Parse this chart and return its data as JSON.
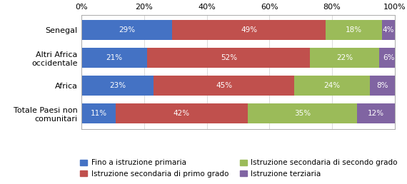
{
  "categories": [
    "Senegal",
    "Altri Africa\noccidentale",
    "Africa",
    "Totale Paesi non\ncomunitari"
  ],
  "series": [
    {
      "label": "Fino a istruzione primaria",
      "color": "#4472C4",
      "values": [
        29,
        21,
        23,
        11
      ]
    },
    {
      "label": "Istruzione secondaria di primo grado",
      "color": "#C0504D",
      "values": [
        49,
        52,
        45,
        42
      ]
    },
    {
      "label": "Istruzione secondaria di secondo grado",
      "color": "#9BBB59",
      "values": [
        18,
        22,
        24,
        35
      ]
    },
    {
      "label": "Istruzione terziaria",
      "color": "#8064A2",
      "values": [
        4,
        6,
        8,
        12
      ]
    }
  ],
  "xlim": [
    0,
    100
  ],
  "xticks": [
    0,
    20,
    40,
    60,
    80,
    100
  ],
  "xticklabels": [
    "0%",
    "20%",
    "40%",
    "60%",
    "80%",
    "100%"
  ],
  "bar_height": 0.72,
  "background_color": "#FFFFFF",
  "label_color": "#FFFFFF",
  "label_fontsize": 7.5,
  "tick_fontsize": 8,
  "legend_fontsize": 7.5,
  "figsize": [
    5.7,
    2.58
  ],
  "dpi": 100
}
